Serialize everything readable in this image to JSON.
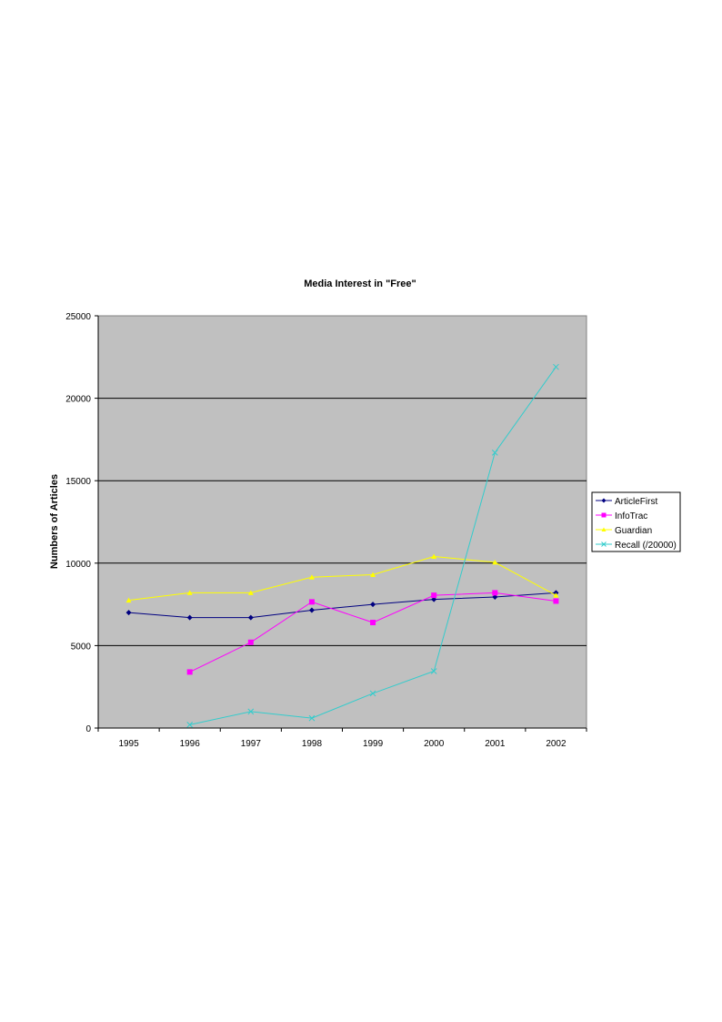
{
  "chart_data": {
    "type": "line",
    "title": "Media Interest in \"Free\"",
    "xlabel": "",
    "ylabel": "Numbers of Articles",
    "ylim": [
      0,
      25000
    ],
    "yticks": [
      "0",
      "5000",
      "10000",
      "15000",
      "20000",
      "25000"
    ],
    "categories": [
      "1995",
      "1996",
      "1997",
      "1998",
      "1999",
      "2000",
      "2001",
      "2002"
    ],
    "plot_background": "#c0c0c0",
    "grid": "horizontal",
    "legend_position": "right",
    "series": [
      {
        "name": "ArticleFirst",
        "color": "#000080",
        "marker": "diamond",
        "values": [
          7000,
          6700,
          6700,
          7150,
          7500,
          7800,
          7950,
          8200
        ]
      },
      {
        "name": "InfoTrac",
        "color": "#ff00ff",
        "marker": "square",
        "values": [
          null,
          3400,
          5200,
          7650,
          6400,
          8050,
          8200,
          7700
        ]
      },
      {
        "name": "Guardian",
        "color": "#ffff00",
        "marker": "triangle",
        "values": [
          7750,
          8200,
          8200,
          9150,
          9300,
          10400,
          10050,
          8050
        ]
      },
      {
        "name": "Recall (/20000)",
        "color": "#33cccc",
        "marker": "x",
        "values": [
          null,
          200,
          1000,
          600,
          2100,
          3450,
          16700,
          21900
        ]
      }
    ]
  }
}
